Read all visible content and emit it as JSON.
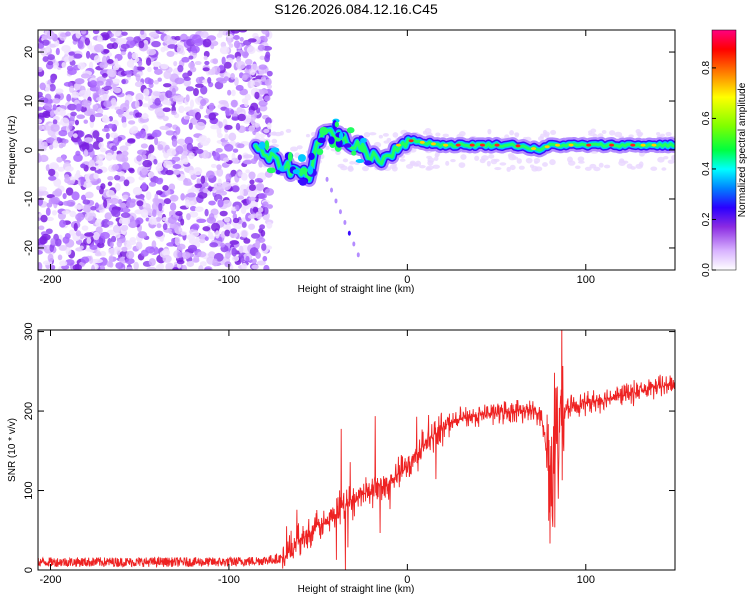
{
  "chart_data": [
    {
      "type": "heatmap",
      "title": "S126.2026.084.12.16.C45",
      "xlabel": "Height of straight line (km)",
      "ylabel": "Frequency (Hz)",
      "xlim": [
        -207,
        150
      ],
      "ylim": [
        -24.5,
        24.5
      ],
      "xticks": [
        -200,
        -100,
        0,
        100
      ],
      "yticks": [
        -20,
        -10,
        0,
        10,
        20
      ],
      "colorbar": {
        "label": "Normalized spectral amplitude",
        "range": [
          0,
          0.95
        ],
        "ticks": [
          0.0,
          0.2,
          0.4,
          0.6,
          0.8
        ],
        "colors": [
          "#ffffff",
          "#d9b3ff",
          "#8b2be2",
          "#2a00ff",
          "#0080ff",
          "#00ffff",
          "#00ff40",
          "#80ff00",
          "#ffff00",
          "#ff8000",
          "#ff0000",
          "#ff0080"
        ]
      },
      "ridge": {
        "description_x": [
          -85,
          -75,
          -65,
          -55,
          -50,
          -45,
          -40,
          -35,
          -30,
          -25,
          -20,
          -15,
          -10,
          -5,
          0,
          20,
          60,
          75,
          80,
          100,
          150
        ],
        "description_y": [
          0,
          -2,
          -4,
          -5,
          2,
          4,
          3,
          2,
          1,
          0,
          -1,
          -2,
          -1,
          1,
          2,
          1,
          1,
          0,
          1,
          1,
          1
        ]
      }
    },
    {
      "type": "line",
      "title": "",
      "xlabel": "Height of straight line (km)",
      "ylabel": "SNR (10 * v/v)",
      "xlim": [
        -207,
        150
      ],
      "ylim": [
        0,
        302
      ],
      "xticks": [
        -200,
        -100,
        0,
        100
      ],
      "yticks": [
        0,
        100,
        200,
        300
      ],
      "color": "#ee2222",
      "series": [
        {
          "name": "SNR",
          "x": [
            -207,
            -180,
            -150,
            -120,
            -100,
            -80,
            -70,
            -65,
            -60,
            -55,
            -50,
            -45,
            -40,
            -35,
            -30,
            -25,
            -20,
            -15,
            -10,
            -5,
            0,
            5,
            10,
            15,
            20,
            25,
            30,
            40,
            50,
            60,
            70,
            75,
            80,
            82,
            84,
            86,
            90,
            100,
            110,
            120,
            130,
            140,
            150
          ],
          "y": [
            10,
            10,
            10,
            10,
            10,
            12,
            15,
            25,
            40,
            45,
            55,
            60,
            70,
            80,
            90,
            95,
            100,
            105,
            110,
            120,
            130,
            145,
            160,
            170,
            180,
            185,
            190,
            195,
            198,
            200,
            200,
            195,
            120,
            150,
            160,
            190,
            205,
            210,
            215,
            220,
            225,
            230,
            235
          ]
        }
      ]
    }
  ]
}
